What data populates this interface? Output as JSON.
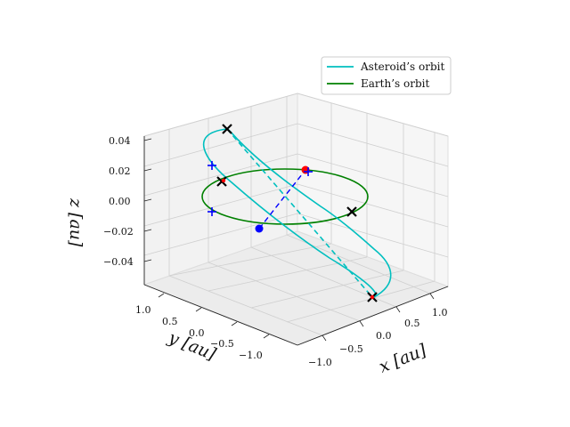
{
  "chart_data": {
    "type": "line3d",
    "view": "3d-orbits",
    "xlabel": "x [au]",
    "ylabel": "y [au]",
    "zlabel": "z [au]",
    "xlim": [
      -1.2,
      1.2
    ],
    "ylim": [
      -1.2,
      1.2
    ],
    "zlim": [
      -0.055,
      0.045
    ],
    "x_ticks": [
      "−1.0",
      "−0.5",
      "0.0",
      "0.5",
      "1.0"
    ],
    "y_ticks": [
      "1.0",
      "0.5",
      "0.0",
      "−0.5",
      "−1.0"
    ],
    "z_ticks": [
      "0.04",
      "0.02",
      "0.00",
      "−0.02",
      "−0.04"
    ],
    "grid": true,
    "legend_position": "top-right",
    "colors": {
      "asteroid": "#00bfbf",
      "earth": "#008000",
      "marker_cross": "#000000",
      "marker_red": "#ff0000",
      "marker_blue": "#0000ff"
    },
    "series": [
      {
        "name": "Asteroid’s orbit",
        "kind": "ellipse",
        "center": [
          0.1,
          0.0,
          0.0
        ],
        "semi_major": 1.15,
        "semi_minor": 0.75,
        "inclination_deg": 1.8,
        "ascending_node_deg": 40,
        "argument_deg": 130,
        "hidden_segment_dashed": true
      },
      {
        "name": "Earth’s orbit",
        "kind": "circle",
        "center": [
          0.0,
          0.0,
          0.0
        ],
        "radius": 1.0
      }
    ],
    "points": [
      {
        "label": "node-cross-1",
        "x": 0.45,
        "y": 0.95,
        "z": 0.0,
        "marker": "x",
        "color": "#000000"
      },
      {
        "label": "node-cross-2",
        "x": -0.85,
        "y": -0.55,
        "z": 0.0,
        "marker": "x",
        "color": "#000000"
      },
      {
        "label": "apsis-cross-top",
        "x": -0.95,
        "y": 0.65,
        "z": 0.036,
        "marker": "x",
        "color": "#000000"
      },
      {
        "label": "apsis-cross-bottom",
        "x": 1.05,
        "y": -0.75,
        "z": -0.036,
        "marker": "x",
        "color": "#000000"
      },
      {
        "label": "red-dot",
        "x": 0.05,
        "y": 1.0,
        "z": 0.0,
        "marker": "o",
        "color": "#ff0000"
      },
      {
        "label": "blue-dot",
        "x": -0.05,
        "y": -1.0,
        "z": 0.0,
        "marker": "o",
        "color": "#0000ff"
      },
      {
        "label": "blue-plus-1",
        "x": 0.1,
        "y": 1.0,
        "z": 0.0,
        "marker": "+",
        "color": "#0000ff"
      },
      {
        "label": "blue-plus-2",
        "x": -1.1,
        "y": 0.4,
        "z": 0.02,
        "marker": "+",
        "color": "#0000ff"
      },
      {
        "label": "blue-plus-3",
        "x": -1.0,
        "y": 0.0,
        "z": -0.008,
        "marker": "+",
        "color": "#0000ff"
      }
    ],
    "connector": {
      "from": "blue-dot",
      "to": "red-dot",
      "style": "dashed",
      "color": "#0000ff"
    }
  }
}
